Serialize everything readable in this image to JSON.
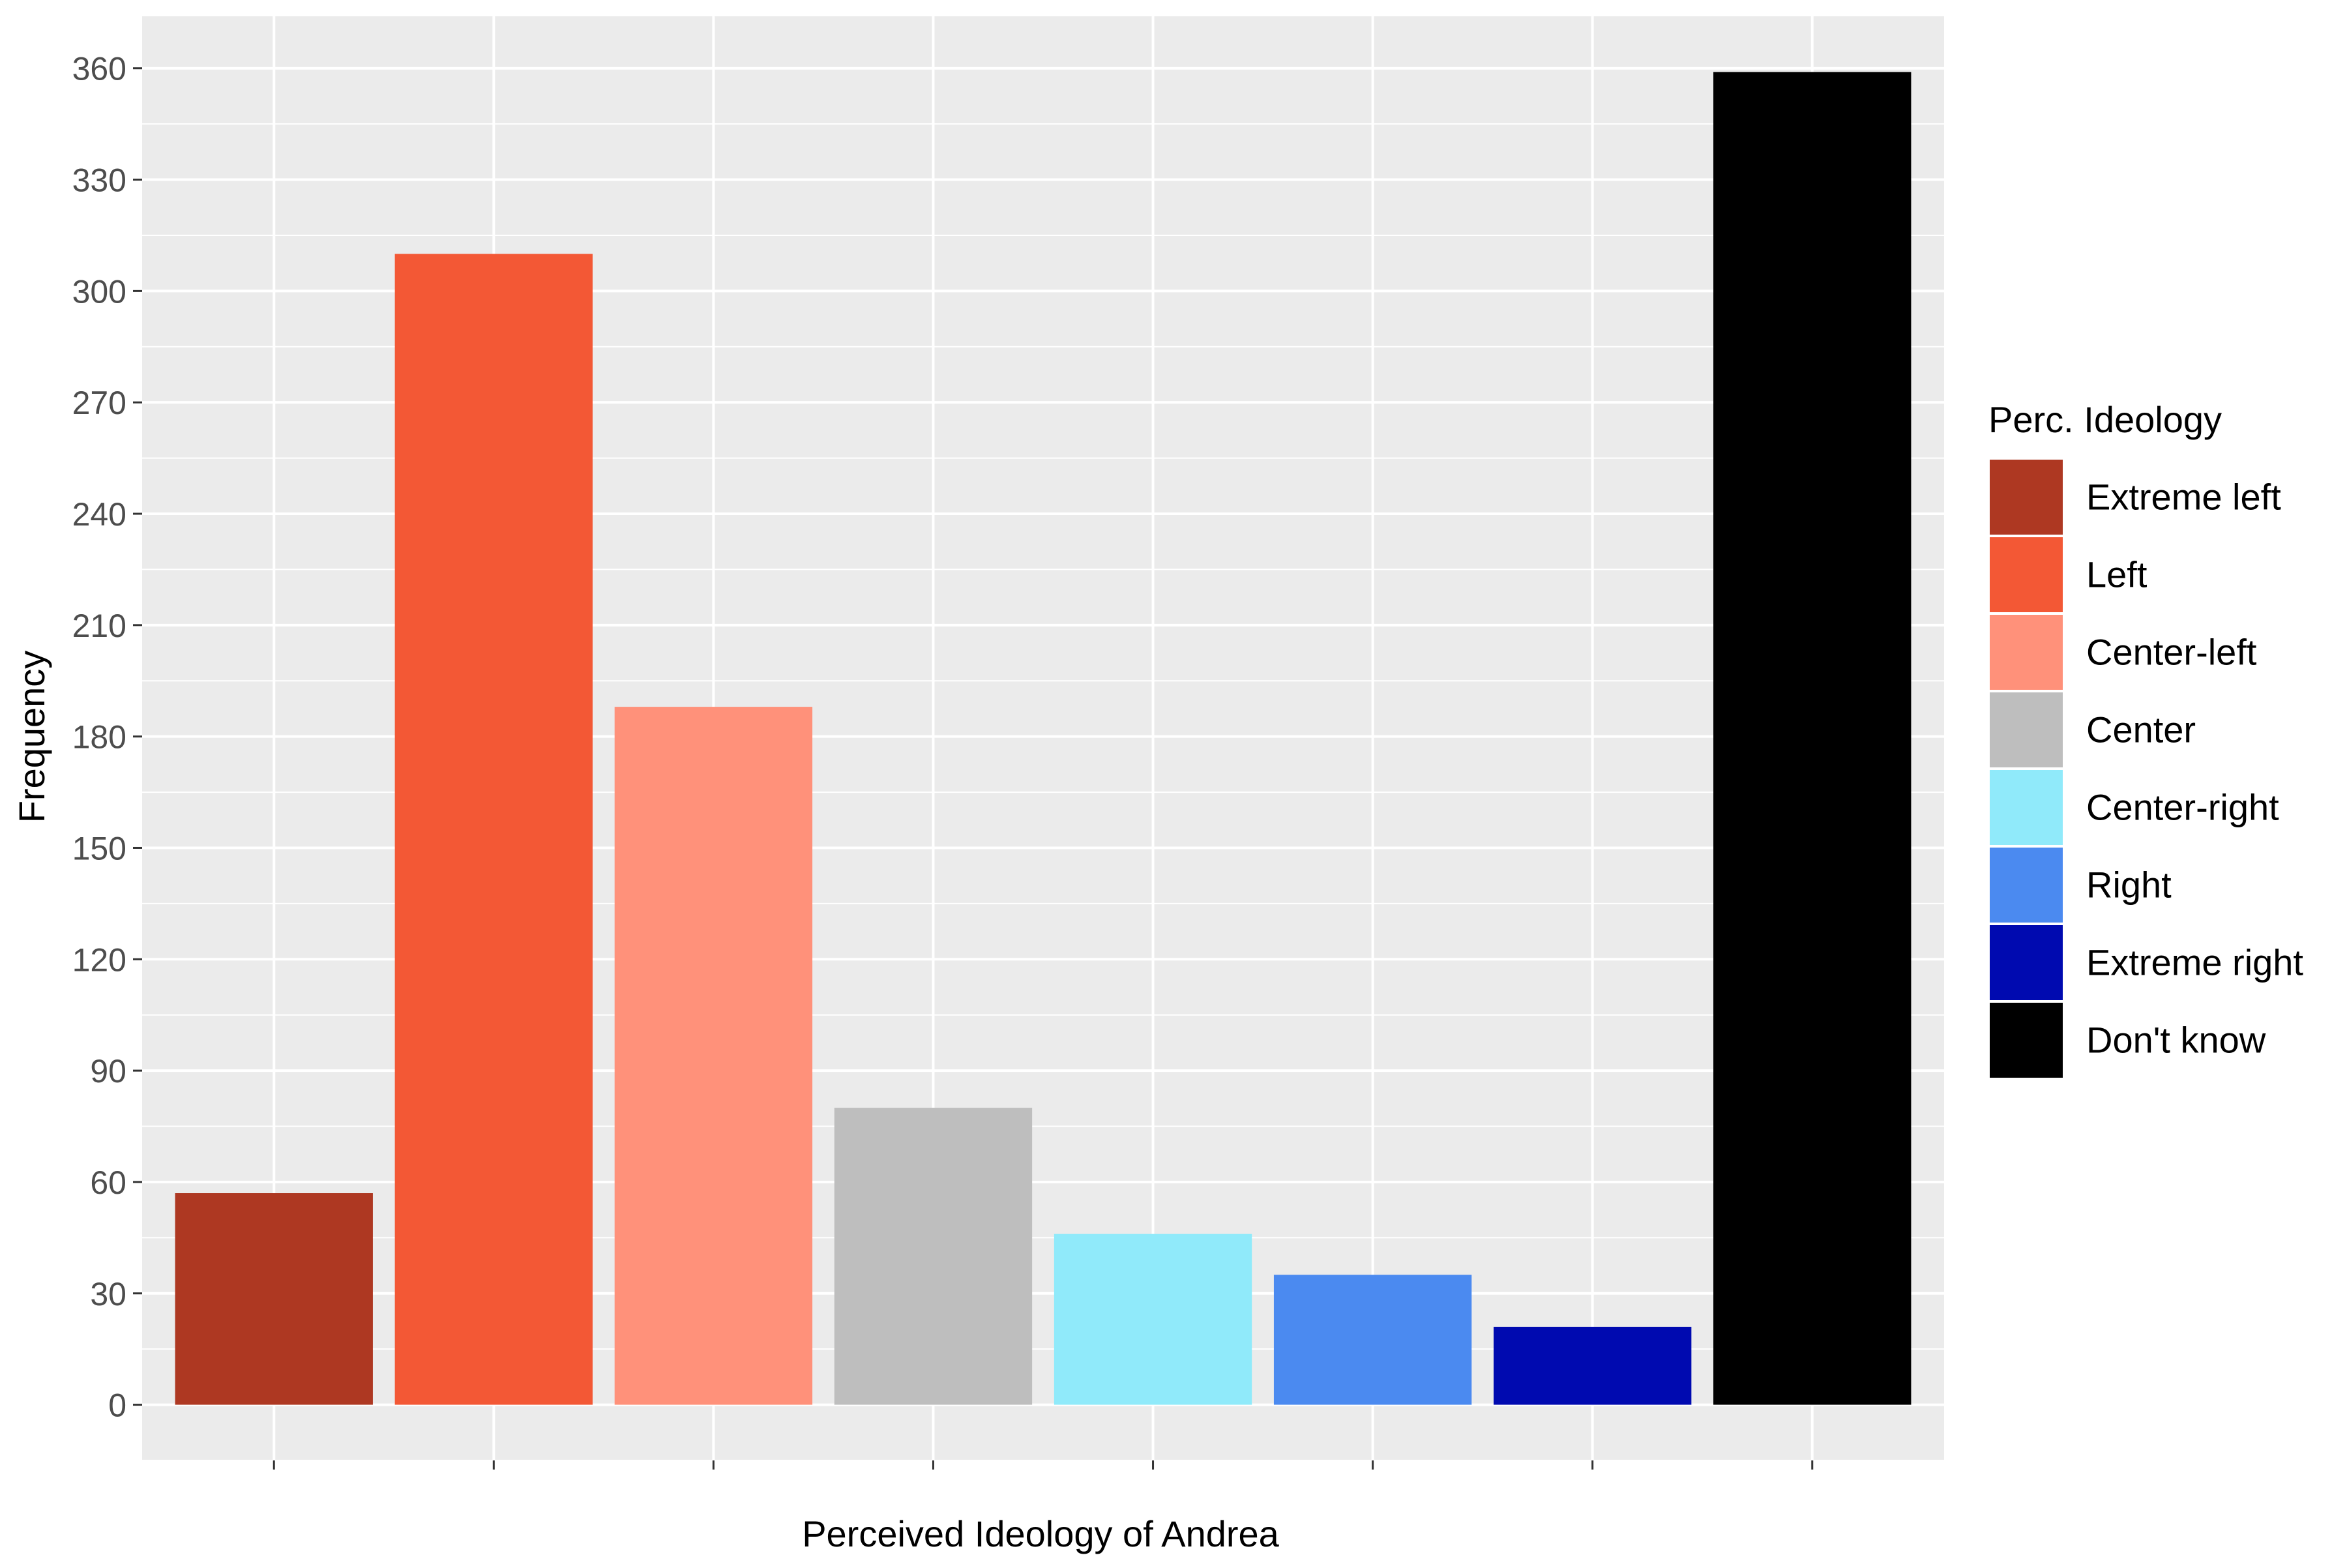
{
  "chart_data": {
    "type": "bar",
    "title": "",
    "xlabel": "Perceived Ideology of Andrea",
    "ylabel": "Frequency",
    "categories": [
      "Extreme left",
      "Left",
      "Center-left",
      "Center",
      "Center-right",
      "Right",
      "Extreme right",
      "Don't know"
    ],
    "values": [
      57,
      310,
      188,
      80,
      46,
      35,
      21,
      359
    ],
    "colors": [
      "#AE3822",
      "#F35835",
      "#FF917A",
      "#BEBEBE",
      "#90EAFA",
      "#4B8AF0",
      "#000AB0",
      "#000000"
    ],
    "ylim": [
      -15,
      374
    ],
    "yticks": [
      0,
      30,
      60,
      90,
      120,
      150,
      180,
      210,
      240,
      270,
      300,
      330,
      360
    ],
    "x_tick_labels_shown": false,
    "grid": true,
    "panel_background": "#EBEBEB",
    "legend": {
      "title": "Perc. Ideology",
      "position": "right",
      "entries": [
        "Extreme left",
        "Left",
        "Center-left",
        "Center",
        "Center-right",
        "Right",
        "Extreme right",
        "Don't know"
      ]
    }
  }
}
